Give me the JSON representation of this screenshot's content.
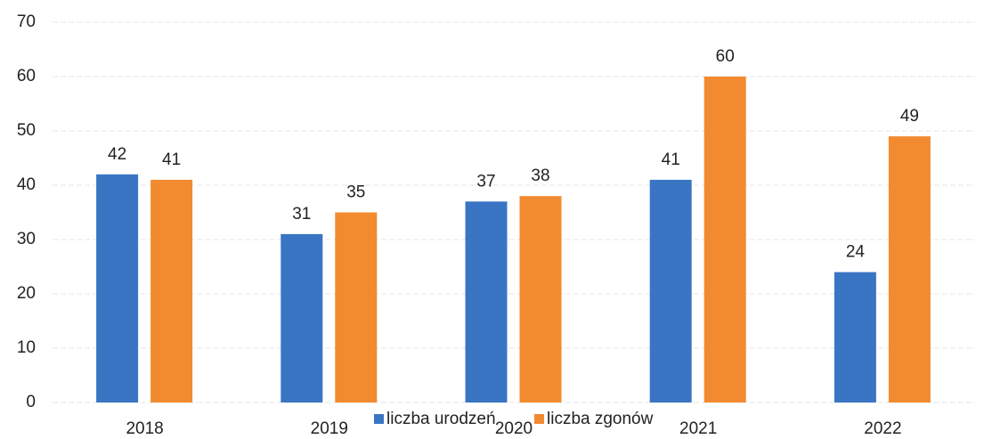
{
  "chart_data": {
    "type": "bar",
    "categories": [
      "2018",
      "2019",
      "2020",
      "2021",
      "2022"
    ],
    "series": [
      {
        "name": "liczba urodzeń",
        "color": "#3a75c4",
        "values": [
          42,
          31,
          37,
          41,
          24
        ]
      },
      {
        "name": "liczba zgonów",
        "color": "#f28a30",
        "values": [
          41,
          35,
          38,
          60,
          49
        ]
      }
    ],
    "ylim": [
      0,
      70
    ],
    "yticks": [
      0,
      10,
      20,
      30,
      40,
      50,
      60,
      70
    ],
    "grid": true,
    "legend": "bottom"
  }
}
